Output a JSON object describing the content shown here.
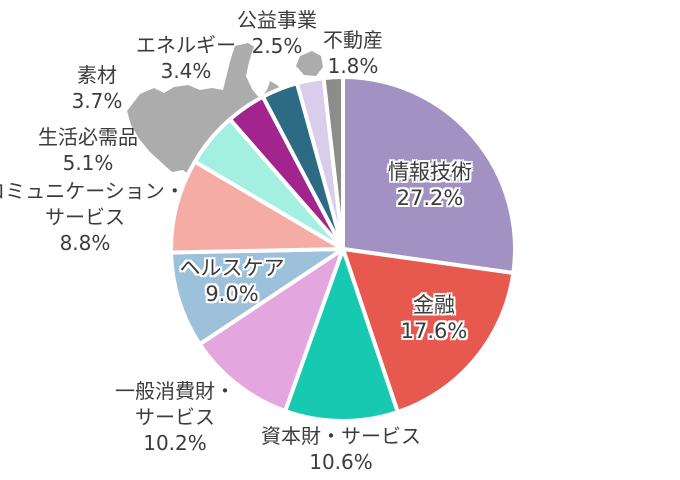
{
  "background_color": "#FFFFFF",
  "text_color": "#3C3C3C",
  "callout_color": "#ACACAC",
  "chart_data": {
    "type": "pie",
    "title": "",
    "start_angle_deg": 0,
    "direction": "clockwise",
    "slice_gap_color": "#FFFFFF",
    "slices": [
      {
        "id": "information-technology",
        "label": "情報技術",
        "label_lines": [
          "情報技術"
        ],
        "value": 27.2,
        "pct_label": "27.2%",
        "color": "#A192C3",
        "label_placement": "inside"
      },
      {
        "id": "financials",
        "label": "金融",
        "label_lines": [
          "金融"
        ],
        "value": 17.6,
        "pct_label": "17.6%",
        "color": "#E7584F",
        "label_placement": "inside"
      },
      {
        "id": "industrials",
        "label": "資本財・サービス",
        "label_lines": [
          "資本財・サービス"
        ],
        "value": 10.6,
        "pct_label": "10.6%",
        "color": "#16C9B0",
        "label_placement": "outside"
      },
      {
        "id": "consumer-discretionary",
        "label": "一般消費財・サービス",
        "label_lines": [
          "一般消費財・",
          "サービス"
        ],
        "value": 10.2,
        "pct_label": "10.2%",
        "color": "#E3A6DF",
        "label_placement": "outside"
      },
      {
        "id": "health-care",
        "label": "ヘルスケア",
        "label_lines": [
          "ヘルスケア"
        ],
        "value": 9.0,
        "pct_label": "9.0%",
        "color": "#9DC1DB",
        "label_placement": "inside"
      },
      {
        "id": "communication-services",
        "label": "コミュニケーション・サービス",
        "label_lines": [
          "コミュニケーション・",
          "サービス"
        ],
        "value": 8.8,
        "pct_label": "8.8%",
        "color": "#F4ACA4",
        "label_placement": "outside"
      },
      {
        "id": "consumer-staples",
        "label": "生活必需品",
        "label_lines": [
          "生活必需品"
        ],
        "value": 5.1,
        "pct_label": "5.1%",
        "color": "#A3EFE1",
        "label_placement": "outside"
      },
      {
        "id": "materials",
        "label": "素材",
        "label_lines": [
          "素材"
        ],
        "value": 3.7,
        "pct_label": "3.7%",
        "color": "#A2258E",
        "label_placement": "outside"
      },
      {
        "id": "energy",
        "label": "エネルギー",
        "label_lines": [
          "エネルギー"
        ],
        "value": 3.4,
        "pct_label": "3.4%",
        "color": "#2D6B84",
        "label_placement": "outside"
      },
      {
        "id": "utilities",
        "label": "公益事業",
        "label_lines": [
          "公益事業"
        ],
        "value": 2.5,
        "pct_label": "2.5%",
        "color": "#D9CDEC",
        "label_placement": "outside"
      },
      {
        "id": "real-estate",
        "label": "不動産",
        "label_lines": [
          "不動産"
        ],
        "value": 1.8,
        "pct_label": "1.8%",
        "color": "#8C8C8C",
        "label_placement": "outside"
      }
    ]
  }
}
